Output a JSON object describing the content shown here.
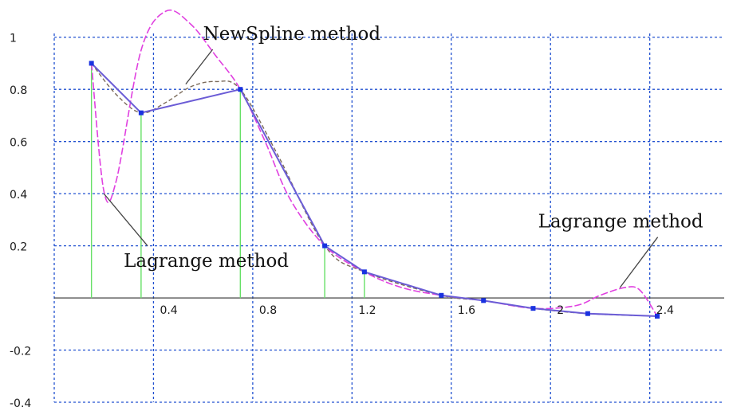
{
  "chart_data": {
    "type": "line",
    "title": "",
    "xlabel": "",
    "ylabel": "",
    "xlim": [
      0.05,
      2.7
    ],
    "ylim": [
      -0.4,
      1.1
    ],
    "x_ticks": [
      0.4,
      0.8,
      1.2,
      1.6,
      2,
      2.4
    ],
    "x_tick_labels": [
      "0.4",
      "0.8",
      "1.2",
      "1.6",
      "2",
      "2.4"
    ],
    "y_ticks": [
      -0.4,
      -0.2,
      0.2,
      0.4,
      0.6,
      0.8,
      1
    ],
    "y_tick_labels": [
      "-0.4",
      "-0.2",
      "0.2",
      "0.4",
      "0.6",
      "0.8",
      "1"
    ],
    "grid": true,
    "colors": {
      "grid": "#2050d0",
      "data_polyline": "#6b5cd6",
      "nodes": "#1a32e0",
      "lagrange": "#e040e0",
      "newspline": "#7a6a5a",
      "stems": "#66e066",
      "annotation_line": "#444444"
    },
    "series": [
      {
        "style": "polyline-with-markers",
        "x": [
          0.15,
          0.35,
          0.75,
          1.09,
          1.25,
          1.56,
          1.73,
          1.93,
          2.15,
          2.43
        ],
        "y": [
          0.9,
          0.71,
          0.8,
          0.2,
          0.1,
          0.01,
          -0.01,
          -0.04,
          -0.06,
          -0.07
        ]
      },
      {
        "style": "lagrange-interpolant",
        "x": [
          0.15,
          0.2,
          0.25,
          0.35,
          0.45,
          0.55,
          0.65,
          0.75,
          0.85,
          0.95,
          1.09,
          1.25,
          1.4,
          1.56,
          1.73,
          1.93,
          2.1,
          2.2,
          2.3,
          2.36,
          2.43
        ],
        "y": [
          0.9,
          0.41,
          0.45,
          0.95,
          1.1,
          1.05,
          0.93,
          0.8,
          0.6,
          0.38,
          0.2,
          0.1,
          0.04,
          0.01,
          -0.01,
          -0.04,
          -0.03,
          0.01,
          0.04,
          0.03,
          -0.07
        ]
      },
      {
        "style": "newspline-interpolant",
        "x": [
          0.15,
          0.25,
          0.35,
          0.45,
          0.55,
          0.65,
          0.75,
          0.9,
          1.09,
          1.25,
          1.56,
          1.73,
          1.93,
          2.15,
          2.43
        ],
        "y": [
          0.9,
          0.78,
          0.71,
          0.75,
          0.81,
          0.83,
          0.8,
          0.55,
          0.2,
          0.1,
          0.01,
          -0.01,
          -0.04,
          -0.06,
          -0.07
        ]
      }
    ],
    "annotations": [
      {
        "text": "NewSpline method",
        "x": 0.6,
        "y": 0.99,
        "point_x": 0.53,
        "point_y": 0.82
      },
      {
        "text": "Lagrange method",
        "x": 0.28,
        "y": 0.12,
        "point_x": 0.2,
        "point_y": 0.4
      },
      {
        "text": "Lagrange method",
        "x": 1.95,
        "y": 0.27,
        "point_x": 2.28,
        "point_y": 0.04
      }
    ]
  }
}
